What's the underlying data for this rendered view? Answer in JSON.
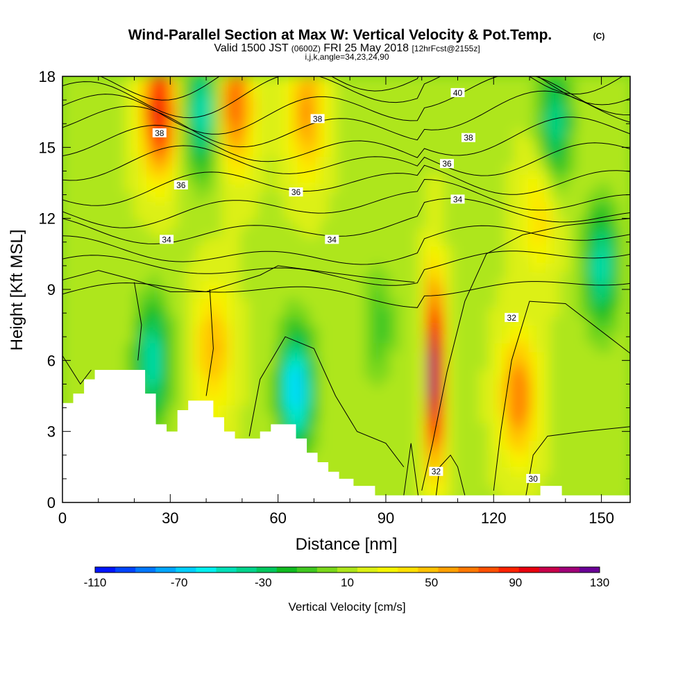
{
  "chart_data": {
    "type": "heatmap",
    "title": "Wind-Parallel Section at Max W: Vertical Velocity & Pot.Temp.",
    "title_mark": "(C)",
    "subtitle_parts": [
      "Valid 1500 JST ",
      "(0600Z)",
      " FRI 25 May 2018 ",
      "[12hrFcst@2155z]"
    ],
    "subtitle2": "i,j,k,angle=34,23,24,90",
    "xlabel": "Distance [nm]",
    "ylabel": "Height [Kft MSL]",
    "xlim": [
      0,
      158
    ],
    "ylim": [
      0,
      18
    ],
    "x_ticks": [
      "0",
      "30",
      "60",
      "90",
      "120",
      "150"
    ],
    "y_ticks": [
      "0",
      "3",
      "6",
      "9",
      "12",
      "15",
      "18"
    ],
    "colorbar": {
      "label": "Vertical Velocity [cm/s]",
      "range": [
        -110,
        130
      ],
      "tick_labels": [
        "-110",
        "-70",
        "-30",
        "10",
        "50",
        "90",
        "130"
      ],
      "colors": [
        "#0015ff",
        "#0044ff",
        "#0077ff",
        "#00a6ff",
        "#00cfff",
        "#00f0f0",
        "#00e0b8",
        "#00d48c",
        "#00c85e",
        "#10bb20",
        "#40c820",
        "#7ad81a",
        "#aee61a",
        "#dcf014",
        "#f5f500",
        "#ffe000",
        "#ffc200",
        "#ffa000",
        "#ff7800",
        "#ff5000",
        "#ff2200",
        "#e8000e",
        "#c8004a",
        "#a00078",
        "#6a0096"
      ]
    },
    "velocity_cores": [
      {
        "x": 27,
        "z": 16.5,
        "w": 85
      },
      {
        "x": 39,
        "z": 16.5,
        "w": -65
      },
      {
        "x": 48,
        "z": 16.8,
        "w": 65
      },
      {
        "x": 68,
        "z": 16.5,
        "w": 50
      },
      {
        "x": 65,
        "z": 4.8,
        "w": -85
      },
      {
        "x": 103.5,
        "z": 5.5,
        "w": 130
      },
      {
        "x": 127,
        "z": 4.5,
        "w": 58
      },
      {
        "x": 42,
        "z": 6.5,
        "w": 42
      },
      {
        "x": 133,
        "z": 12.5,
        "w": 30
      },
      {
        "x": 137,
        "z": 16,
        "w": -55
      },
      {
        "x": 150,
        "z": 10,
        "w": -60
      },
      {
        "x": 88,
        "z": 7.5,
        "w": -25
      },
      {
        "x": 25,
        "z": 6,
        "w": -62
      }
    ],
    "theta_contour_labels": [
      {
        "value": "40",
        "x": 110,
        "z": 17.3
      },
      {
        "value": "38",
        "x": 27,
        "z": 15.6
      },
      {
        "value": "38",
        "x": 71,
        "z": 16.2
      },
      {
        "x": 113,
        "z": 15.4,
        "value": "38"
      },
      {
        "value": "36",
        "x": 33,
        "z": 13.4
      },
      {
        "value": "36",
        "x": 65,
        "z": 13.1
      },
      {
        "value": "36",
        "x": 107,
        "z": 14.3
      },
      {
        "value": "34",
        "x": 29,
        "z": 11.1
      },
      {
        "value": "34",
        "x": 75,
        "z": 11.1
      },
      {
        "value": "34",
        "x": 110,
        "z": 12.8
      },
      {
        "value": "32",
        "x": 125,
        "z": 7.8
      },
      {
        "value": "32",
        "x": 104,
        "z": 1.3
      },
      {
        "value": "30",
        "x": 131,
        "z": 1.0
      }
    ],
    "terrain_profile": [
      [
        0,
        4.2
      ],
      [
        3,
        4.2
      ],
      [
        3,
        4.6
      ],
      [
        6,
        4.6
      ],
      [
        6,
        5.2
      ],
      [
        9,
        5.2
      ],
      [
        9,
        5.6
      ],
      [
        23,
        5.6
      ],
      [
        23,
        4.6
      ],
      [
        26,
        4.6
      ],
      [
        26,
        3.3
      ],
      [
        29,
        3.3
      ],
      [
        29,
        3.0
      ],
      [
        32,
        3.0
      ],
      [
        32,
        3.9
      ],
      [
        35,
        3.9
      ],
      [
        35,
        4.3
      ],
      [
        42,
        4.3
      ],
      [
        42,
        3.6
      ],
      [
        45,
        3.6
      ],
      [
        45,
        3.0
      ],
      [
        48,
        3.0
      ],
      [
        48,
        2.7
      ],
      [
        55,
        2.7
      ],
      [
        55,
        3.0
      ],
      [
        58,
        3.0
      ],
      [
        58,
        3.3
      ],
      [
        65,
        3.3
      ],
      [
        65,
        2.7
      ],
      [
        68,
        2.7
      ],
      [
        68,
        2.1
      ],
      [
        71,
        2.1
      ],
      [
        71,
        1.7
      ],
      [
        74,
        1.7
      ],
      [
        74,
        1.3
      ],
      [
        77,
        1.3
      ],
      [
        77,
        1.0
      ],
      [
        81,
        1.0
      ],
      [
        81,
        0.7
      ],
      [
        87,
        0.7
      ],
      [
        87,
        0.3
      ],
      [
        158,
        0.3
      ]
    ],
    "terrain_bump": [
      [
        133,
        0.3
      ],
      [
        133,
        0.7
      ],
      [
        139,
        0.7
      ],
      [
        139,
        0.3
      ]
    ]
  }
}
